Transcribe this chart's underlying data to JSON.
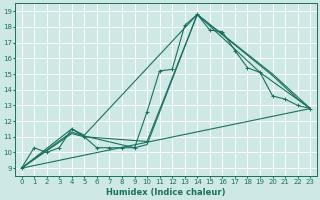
{
  "xlabel": "Humidex (Indice chaleur)",
  "bg_color": "#cde8e5",
  "grid_color": "#ffffff",
  "line_color": "#1a7060",
  "xlim": [
    -0.5,
    23.5
  ],
  "ylim": [
    8.5,
    19.5
  ],
  "xticks": [
    0,
    1,
    2,
    3,
    4,
    5,
    6,
    7,
    8,
    9,
    10,
    11,
    12,
    13,
    14,
    15,
    16,
    17,
    18,
    19,
    20,
    21,
    22,
    23
  ],
  "yticks": [
    9,
    10,
    11,
    12,
    13,
    14,
    15,
    16,
    17,
    18,
    19
  ],
  "main_line": [
    [
      0,
      9
    ],
    [
      1,
      10.3
    ],
    [
      2,
      10
    ],
    [
      3,
      10.3
    ],
    [
      4,
      11.5
    ],
    [
      5,
      11
    ],
    [
      6,
      10.3
    ],
    [
      7,
      10.3
    ],
    [
      8,
      10.3
    ],
    [
      9,
      10.3
    ],
    [
      10,
      12.6
    ],
    [
      11,
      15.2
    ],
    [
      12,
      15.3
    ],
    [
      13,
      18.1
    ],
    [
      14,
      18.8
    ],
    [
      15,
      17.8
    ],
    [
      16,
      17.7
    ],
    [
      17,
      16.5
    ],
    [
      18,
      15.4
    ],
    [
      19,
      15.1
    ],
    [
      20,
      13.6
    ],
    [
      21,
      13.4
    ],
    [
      22,
      13
    ],
    [
      23,
      12.8
    ]
  ],
  "other_lines": [
    [
      [
        0,
        9
      ],
      [
        23,
        12.8
      ]
    ],
    [
      [
        0,
        9
      ],
      [
        4,
        11.5
      ],
      [
        5,
        11.1
      ],
      [
        14,
        18.8
      ],
      [
        19,
        15.1
      ],
      [
        23,
        12.8
      ]
    ],
    [
      [
        0,
        9
      ],
      [
        4,
        11.2
      ],
      [
        5,
        11.0
      ],
      [
        10,
        10.7
      ],
      [
        14,
        18.8
      ],
      [
        20,
        15.0
      ],
      [
        23,
        12.8
      ]
    ],
    [
      [
        0,
        9
      ],
      [
        4,
        11.3
      ],
      [
        5,
        11.05
      ],
      [
        9,
        10.3
      ],
      [
        10,
        10.5
      ],
      [
        14,
        18.8
      ],
      [
        20,
        14.9
      ],
      [
        22,
        13.4
      ],
      [
        23,
        12.8
      ]
    ]
  ]
}
